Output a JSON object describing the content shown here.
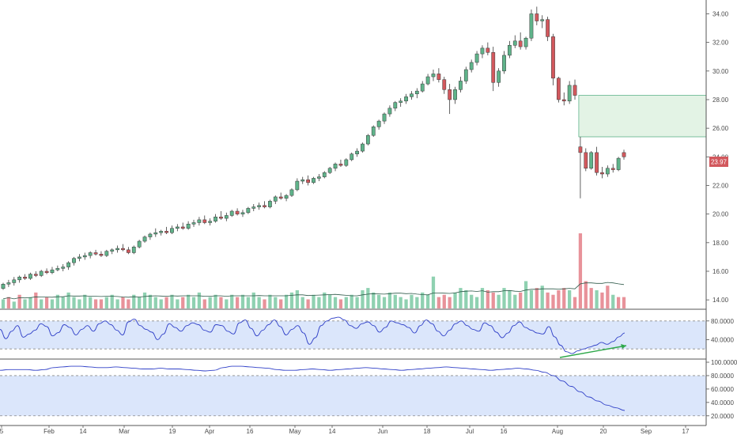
{
  "chart_data": [
    {
      "type": "candlestick",
      "name": "price",
      "ylim": [
        13.4,
        34.8
      ],
      "y_ticks": [
        "14.00",
        "16.00",
        "18.00",
        "20.00",
        "22.00",
        "24.00",
        "26.00",
        "28.00",
        "30.00",
        "32.00",
        "34.00"
      ],
      "last_price": "23.97",
      "ohlc": [
        [
          14.8,
          15.2,
          14.7,
          15.1
        ],
        [
          15.1,
          15.4,
          14.9,
          15.2
        ],
        [
          15.2,
          15.6,
          15.0,
          15.4
        ],
        [
          15.4,
          15.7,
          15.2,
          15.6
        ],
        [
          15.6,
          15.8,
          15.4,
          15.5
        ],
        [
          15.5,
          15.9,
          15.4,
          15.8
        ],
        [
          15.8,
          16.0,
          15.6,
          15.7
        ],
        [
          15.7,
          16.1,
          15.6,
          16.0
        ],
        [
          16.0,
          16.2,
          15.8,
          15.9
        ],
        [
          15.9,
          16.3,
          15.8,
          16.1
        ],
        [
          16.1,
          16.4,
          16.0,
          16.2
        ],
        [
          16.2,
          16.5,
          16.0,
          16.3
        ],
        [
          16.3,
          16.7,
          16.1,
          16.6
        ],
        [
          16.6,
          17.0,
          16.4,
          16.9
        ],
        [
          16.9,
          17.2,
          16.7,
          17.0
        ],
        [
          17.0,
          17.3,
          16.8,
          17.1
        ],
        [
          17.1,
          17.4,
          16.9,
          17.3
        ],
        [
          17.3,
          17.5,
          17.1,
          17.2
        ],
        [
          17.2,
          17.4,
          17.0,
          17.1
        ],
        [
          17.1,
          17.5,
          17.0,
          17.4
        ],
        [
          17.4,
          17.6,
          17.2,
          17.5
        ],
        [
          17.5,
          17.8,
          17.3,
          17.6
        ],
        [
          17.6,
          17.9,
          17.4,
          17.5
        ],
        [
          17.5,
          17.7,
          17.2,
          17.3
        ],
        [
          17.3,
          17.8,
          17.2,
          17.7
        ],
        [
          17.7,
          18.2,
          17.6,
          18.1
        ],
        [
          18.1,
          18.5,
          18.0,
          18.4
        ],
        [
          18.4,
          18.7,
          18.2,
          18.6
        ],
        [
          18.6,
          19.0,
          18.4,
          18.7
        ],
        [
          18.7,
          18.9,
          18.5,
          18.8
        ],
        [
          18.8,
          19.1,
          18.6,
          18.7
        ],
        [
          18.7,
          19.2,
          18.6,
          19.0
        ],
        [
          19.0,
          19.3,
          18.8,
          19.1
        ],
        [
          19.1,
          19.4,
          18.9,
          19.0
        ],
        [
          19.0,
          19.5,
          18.9,
          19.3
        ],
        [
          19.3,
          19.6,
          19.1,
          19.4
        ],
        [
          19.4,
          19.8,
          19.2,
          19.6
        ],
        [
          19.6,
          19.9,
          19.3,
          19.4
        ],
        [
          19.4,
          19.7,
          19.2,
          19.5
        ],
        [
          19.5,
          20.0,
          19.4,
          19.8
        ],
        [
          19.8,
          20.2,
          19.6,
          19.7
        ],
        [
          19.7,
          20.1,
          19.5,
          19.9
        ],
        [
          19.9,
          20.3,
          19.8,
          20.2
        ],
        [
          20.2,
          20.4,
          19.9,
          20.0
        ],
        [
          20.0,
          20.3,
          19.8,
          20.1
        ],
        [
          20.1,
          20.5,
          20.0,
          20.4
        ],
        [
          20.4,
          20.7,
          20.2,
          20.5
        ],
        [
          20.5,
          20.8,
          20.3,
          20.6
        ],
        [
          20.6,
          20.9,
          20.4,
          20.5
        ],
        [
          20.5,
          21.0,
          20.4,
          20.9
        ],
        [
          20.9,
          21.3,
          20.7,
          21.2
        ],
        [
          21.2,
          21.5,
          21.0,
          21.1
        ],
        [
          21.1,
          21.4,
          20.9,
          21.3
        ],
        [
          21.3,
          21.8,
          21.2,
          21.7
        ],
        [
          21.7,
          22.5,
          21.6,
          22.3
        ],
        [
          22.3,
          22.6,
          22.1,
          22.4
        ],
        [
          22.4,
          22.7,
          22.0,
          22.2
        ],
        [
          22.2,
          22.6,
          22.1,
          22.5
        ],
        [
          22.5,
          22.8,
          22.3,
          22.6
        ],
        [
          22.6,
          23.0,
          22.5,
          22.9
        ],
        [
          22.9,
          23.3,
          22.8,
          23.2
        ],
        [
          23.2,
          23.6,
          23.0,
          23.5
        ],
        [
          23.5,
          23.8,
          23.3,
          23.4
        ],
        [
          23.4,
          23.9,
          23.3,
          23.8
        ],
        [
          23.8,
          24.3,
          23.7,
          24.2
        ],
        [
          24.2,
          24.6,
          24.0,
          24.4
        ],
        [
          24.4,
          25.0,
          24.3,
          24.9
        ],
        [
          24.9,
          25.6,
          24.8,
          25.5
        ],
        [
          25.5,
          26.2,
          25.4,
          26.1
        ],
        [
          26.1,
          26.6,
          25.9,
          26.5
        ],
        [
          26.5,
          27.1,
          26.3,
          27.0
        ],
        [
          27.0,
          27.6,
          26.8,
          27.4
        ],
        [
          27.4,
          27.9,
          27.2,
          27.8
        ],
        [
          27.8,
          28.1,
          27.5,
          27.9
        ],
        [
          27.9,
          28.4,
          27.7,
          28.2
        ],
        [
          28.2,
          28.6,
          28.0,
          28.4
        ],
        [
          28.4,
          28.8,
          28.1,
          28.6
        ],
        [
          28.6,
          29.3,
          28.5,
          29.1
        ],
        [
          29.1,
          29.8,
          29.0,
          29.6
        ],
        [
          29.6,
          30.1,
          29.3,
          29.8
        ],
        [
          29.8,
          30.2,
          29.2,
          29.4
        ],
        [
          29.4,
          29.6,
          28.4,
          28.7
        ],
        [
          28.7,
          29.1,
          27.0,
          28.0
        ],
        [
          28.0,
          28.9,
          27.7,
          28.7
        ],
        [
          28.7,
          29.6,
          28.5,
          29.3
        ],
        [
          29.3,
          30.3,
          29.1,
          30.1
        ],
        [
          30.1,
          30.8,
          29.9,
          30.6
        ],
        [
          30.6,
          31.4,
          30.4,
          31.2
        ],
        [
          31.2,
          31.8,
          30.9,
          31.6
        ],
        [
          31.6,
          32.0,
          31.1,
          31.3
        ],
        [
          31.3,
          31.7,
          28.6,
          29.2
        ],
        [
          29.2,
          30.2,
          28.9,
          30.0
        ],
        [
          30.0,
          31.4,
          29.8,
          31.1
        ],
        [
          31.1,
          32.1,
          30.9,
          31.8
        ],
        [
          31.8,
          32.5,
          31.6,
          32.1
        ],
        [
          32.1,
          32.7,
          31.5,
          31.7
        ],
        [
          31.7,
          32.4,
          31.5,
          32.3
        ],
        [
          32.3,
          34.3,
          32.1,
          34.0
        ],
        [
          34.0,
          34.5,
          33.2,
          33.5
        ],
        [
          33.5,
          33.9,
          33.0,
          33.6
        ],
        [
          33.6,
          33.8,
          32.1,
          32.4
        ],
        [
          32.4,
          32.6,
          29.0,
          29.5
        ],
        [
          29.5,
          29.6,
          27.8,
          28.0
        ],
        [
          28.0,
          28.5,
          27.6,
          27.9
        ],
        [
          27.9,
          29.3,
          27.7,
          29.0
        ],
        [
          29.0,
          29.4,
          28.0,
          28.3
        ],
        [
          24.7,
          25.4,
          21.1,
          24.3
        ],
        [
          24.3,
          24.6,
          23.0,
          23.2
        ],
        [
          23.2,
          24.4,
          23.1,
          24.3
        ],
        [
          24.3,
          24.7,
          22.7,
          22.9
        ],
        [
          22.9,
          23.3,
          22.5,
          22.8
        ],
        [
          22.8,
          23.4,
          22.6,
          23.2
        ],
        [
          23.2,
          23.5,
          22.9,
          23.1
        ],
        [
          23.1,
          24.0,
          23.0,
          23.9
        ],
        [
          24.3,
          24.5,
          23.8,
          24.0
        ]
      ],
      "volume": [
        4,
        5,
        3,
        6,
        4,
        5,
        7,
        4,
        5,
        4,
        6,
        5,
        7,
        5,
        4,
        6,
        5,
        4,
        4,
        5,
        6,
        4,
        5,
        4,
        6,
        5,
        7,
        6,
        5,
        4,
        5,
        6,
        4,
        5,
        6,
        5,
        7,
        4,
        5,
        6,
        5,
        4,
        6,
        5,
        6,
        5,
        7,
        5,
        4,
        6,
        5,
        4,
        6,
        7,
        8,
        5,
        4,
        6,
        5,
        7,
        6,
        5,
        4,
        5,
        6,
        5,
        8,
        9,
        7,
        6,
        5,
        7,
        6,
        5,
        4,
        6,
        5,
        7,
        6,
        14,
        5,
        6,
        5,
        7,
        9,
        8,
        6,
        5,
        9,
        8,
        7,
        6,
        9,
        8,
        6,
        7,
        12,
        8,
        9,
        10,
        7,
        6,
        8,
        9,
        8,
        5,
        33,
        12,
        9,
        8,
        7,
        10,
        6,
        5,
        5
      ],
      "volume_colors": [
        "g",
        "r",
        "g",
        "r",
        "g",
        "g",
        "r",
        "g",
        "r",
        "g",
        "g",
        "g",
        "g",
        "g",
        "g",
        "g",
        "g",
        "r",
        "r",
        "g",
        "g",
        "g",
        "r",
        "r",
        "g",
        "g",
        "g",
        "g",
        "g",
        "g",
        "r",
        "g",
        "g",
        "r",
        "g",
        "g",
        "g",
        "r",
        "g",
        "g",
        "r",
        "g",
        "g",
        "r",
        "g",
        "g",
        "g",
        "g",
        "r",
        "g",
        "g",
        "r",
        "g",
        "g",
        "g",
        "g",
        "r",
        "g",
        "g",
        "g",
        "g",
        "g",
        "r",
        "g",
        "g",
        "g",
        "g",
        "g",
        "g",
        "g",
        "g",
        "g",
        "g",
        "g",
        "g",
        "g",
        "g",
        "g",
        "g",
        "g",
        "r",
        "r",
        "r",
        "g",
        "g",
        "g",
        "g",
        "g",
        "g",
        "r",
        "r",
        "g",
        "g",
        "g",
        "g",
        "r",
        "g",
        "g",
        "r",
        "g",
        "r",
        "r",
        "r",
        "r",
        "g",
        "r",
        "r",
        "r",
        "r",
        "g",
        "r",
        "r",
        "g",
        "r",
        "r"
      ],
      "volume_ma_relative": 0.27,
      "zone": {
        "from_index": 106,
        "to": "end",
        "y_low": 25.4,
        "y_high": 28.3
      },
      "up_color": "#5fb38a",
      "down_color": "#d2585d",
      "zone_color": "#e3f3e5"
    },
    {
      "type": "line",
      "name": "oscillator-1",
      "y_ticks": [
        "80.0000",
        "40.0000"
      ],
      "band": [
        20,
        80
      ],
      "values": [
        62,
        42,
        58,
        70,
        45,
        52,
        60,
        74,
        68,
        48,
        55,
        72,
        66,
        50,
        62,
        70,
        58,
        74,
        80,
        72,
        60,
        50,
        78,
        84,
        70,
        62,
        56,
        40,
        52,
        74,
        66,
        58,
        70,
        76,
        72,
        60,
        56,
        72,
        70,
        58,
        52,
        76,
        82,
        64,
        48,
        60,
        72,
        82,
        68,
        50,
        62,
        70,
        54,
        30,
        44,
        70,
        80,
        86,
        88,
        82,
        70,
        64,
        74,
        78,
        70,
        56,
        66,
        80,
        76,
        72,
        66,
        54,
        70,
        82,
        74,
        58,
        48,
        60,
        74,
        80,
        70,
        62,
        58,
        76,
        70,
        56,
        44,
        54,
        70,
        78,
        66,
        60,
        54,
        52,
        68,
        46,
        28,
        14,
        10,
        16,
        20,
        24,
        28,
        34,
        30,
        36,
        46,
        54
      ]
    },
    {
      "type": "line",
      "name": "oscillator-2",
      "y_ticks": [
        "100.0000",
        "80.0000",
        "60.0000",
        "40.0000",
        "20.0000"
      ],
      "band": [
        20,
        80
      ],
      "values": [
        88,
        89,
        89,
        89,
        88,
        89,
        92,
        93,
        94,
        94,
        93,
        92,
        92,
        93,
        92,
        91,
        90,
        90,
        91,
        90,
        90,
        89,
        88,
        87,
        88,
        92,
        94,
        94,
        93,
        92,
        91,
        89,
        88,
        88,
        89,
        90,
        89,
        88,
        89,
        90,
        91,
        92,
        91,
        90,
        89,
        88,
        89,
        90,
        91,
        92,
        93,
        92,
        91,
        90,
        89,
        88,
        89,
        90,
        91,
        90,
        88,
        85,
        80,
        72,
        64,
        56,
        48,
        42,
        36,
        32,
        28
      ]
    },
    {
      "type": "time_axis",
      "labels": [
        "5",
        "Feb",
        "14",
        "Mar",
        "19",
        "Apr",
        "16",
        "May",
        "14",
        "Jun",
        "18",
        "Jul",
        "16",
        "Aug",
        "20",
        "Sep",
        "17"
      ]
    }
  ]
}
